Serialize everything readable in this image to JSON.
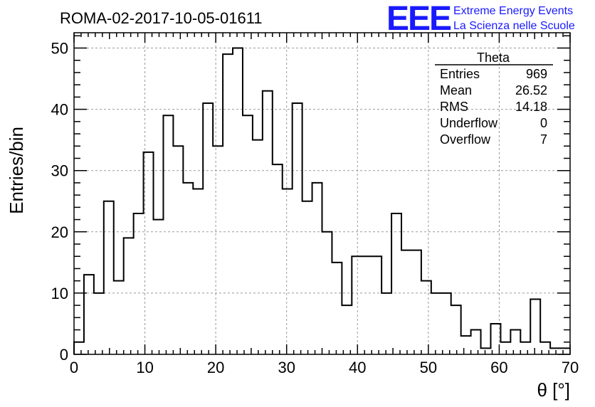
{
  "title": "ROMA-02-2017-10-05-01611",
  "logo": {
    "mark": "EEE",
    "line1": "Extreme Energy Events",
    "line2": "La Scienza nelle Scuole",
    "color": "#1a1aff"
  },
  "stats": {
    "name": "Theta",
    "rows": [
      {
        "label": "Entries",
        "value": "969"
      },
      {
        "label": "Mean",
        "value": "26.52"
      },
      {
        "label": "RMS",
        "value": "14.18"
      },
      {
        "label": "Underflow",
        "value": "0"
      },
      {
        "label": "Overflow",
        "value": "7"
      }
    ]
  },
  "chart_data": {
    "type": "bar",
    "histogram_style": "step",
    "title": "ROMA-02-2017-10-05-01611",
    "xlabel": "θ [°]",
    "ylabel": "Entries/bin",
    "xlim": [
      0,
      70
    ],
    "ylim": [
      0,
      52.5
    ],
    "xticks": [
      0,
      10,
      20,
      30,
      40,
      50,
      60,
      70
    ],
    "yticks": [
      0,
      10,
      20,
      30,
      40,
      50
    ],
    "grid": true,
    "bin_edges_start": 0,
    "bin_width": 1.4,
    "values": [
      2,
      13,
      10,
      25,
      12,
      19,
      23,
      33,
      22,
      39,
      34,
      28,
      27,
      41,
      34,
      49,
      50,
      39,
      35,
      43,
      31,
      27,
      41,
      25,
      28,
      20,
      15,
      8,
      16,
      16,
      16,
      10,
      23,
      17,
      17,
      12,
      10,
      10,
      8,
      3,
      4,
      1,
      5,
      2,
      4,
      2,
      9,
      2,
      1,
      1
    ]
  }
}
